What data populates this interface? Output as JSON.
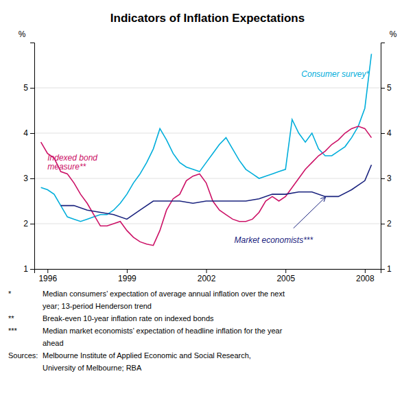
{
  "chart_data": {
    "type": "line",
    "title": "Indicators of Inflation Expectations",
    "ylabel": "%",
    "y2label": "%",
    "xlim": [
      1995.5,
      2008.6
    ],
    "xticks": [
      1996,
      1999,
      2002,
      2005,
      2008
    ],
    "ylim": [
      1,
      6
    ],
    "yticks": [
      1,
      2,
      3,
      4,
      5
    ],
    "y2lim": [
      1,
      6
    ],
    "y2ticks": [
      1,
      2,
      3,
      4,
      5
    ],
    "grid": true,
    "series": [
      {
        "name": "Consumer survey*",
        "color": "#00aedb",
        "x": [
          1995.75,
          1996.0,
          1996.25,
          1996.5,
          1996.75,
          1997.0,
          1997.25,
          1997.5,
          1997.75,
          1998.0,
          1998.25,
          1998.5,
          1998.75,
          1999.0,
          1999.25,
          1999.5,
          1999.75,
          2000.0,
          2000.25,
          2000.5,
          2000.75,
          2001.0,
          2001.25,
          2001.5,
          2001.75,
          2002.0,
          2002.25,
          2002.5,
          2002.75,
          2003.0,
          2003.25,
          2003.5,
          2003.75,
          2004.0,
          2004.25,
          2004.5,
          2004.75,
          2005.0,
          2005.25,
          2005.5,
          2005.75,
          2006.0,
          2006.25,
          2006.5,
          2006.75,
          2007.0,
          2007.25,
          2007.5,
          2007.75,
          2008.0,
          2008.25
        ],
        "values": [
          2.8,
          2.75,
          2.65,
          2.4,
          2.15,
          2.1,
          2.05,
          2.1,
          2.15,
          2.2,
          2.2,
          2.3,
          2.45,
          2.65,
          2.9,
          3.1,
          3.35,
          3.65,
          4.1,
          3.85,
          3.55,
          3.35,
          3.25,
          3.2,
          3.15,
          3.35,
          3.55,
          3.75,
          3.9,
          3.65,
          3.4,
          3.2,
          3.1,
          3.0,
          3.05,
          3.1,
          3.15,
          3.2,
          4.3,
          4.0,
          3.8,
          4.0,
          3.65,
          3.5,
          3.5,
          3.6,
          3.7,
          3.9,
          4.15,
          4.55,
          5.75
        ]
      },
      {
        "name": "Indexed bond\nmeasure**",
        "color": "#cc1166",
        "x": [
          1995.75,
          1996.0,
          1996.25,
          1996.5,
          1996.75,
          1997.0,
          1997.25,
          1997.5,
          1997.75,
          1998.0,
          1998.25,
          1998.5,
          1998.75,
          1999.0,
          1999.25,
          1999.5,
          1999.75,
          2000.0,
          2000.25,
          2000.5,
          2000.75,
          2001.0,
          2001.25,
          2001.5,
          2001.75,
          2002.0,
          2002.25,
          2002.5,
          2002.75,
          2003.0,
          2003.25,
          2003.5,
          2003.75,
          2004.0,
          2004.25,
          2004.5,
          2004.75,
          2005.0,
          2005.25,
          2005.5,
          2005.75,
          2006.0,
          2006.25,
          2006.5,
          2006.75,
          2007.0,
          2007.25,
          2007.5,
          2007.75,
          2008.0,
          2008.25
        ],
        "values": [
          3.8,
          3.55,
          3.45,
          3.15,
          3.1,
          2.9,
          2.65,
          2.45,
          2.2,
          1.95,
          1.95,
          2.0,
          2.05,
          1.85,
          1.7,
          1.6,
          1.55,
          1.52,
          1.85,
          2.3,
          2.55,
          2.65,
          2.95,
          3.05,
          3.1,
          2.9,
          2.5,
          2.3,
          2.2,
          2.1,
          2.05,
          2.05,
          2.1,
          2.25,
          2.5,
          2.6,
          2.5,
          2.6,
          2.8,
          3.0,
          3.2,
          3.35,
          3.5,
          3.6,
          3.75,
          3.85,
          4.0,
          4.1,
          4.15,
          4.1,
          3.9
        ]
      },
      {
        "name": "Market economists***",
        "color": "#1a237e",
        "x": [
          1996.5,
          1997.0,
          1997.5,
          1998.0,
          1998.5,
          1999.0,
          1999.5,
          2000.0,
          2000.5,
          2001.0,
          2001.5,
          2002.0,
          2002.5,
          2003.0,
          2003.5,
          2004.0,
          2004.5,
          2005.0,
          2005.5,
          2006.0,
          2006.5,
          2007.0,
          2007.5,
          2008.0,
          2008.25
        ],
        "values": [
          2.4,
          2.4,
          2.3,
          2.25,
          2.2,
          2.1,
          2.3,
          2.5,
          2.5,
          2.5,
          2.45,
          2.5,
          2.5,
          2.5,
          2.5,
          2.55,
          2.65,
          2.65,
          2.7,
          2.7,
          2.6,
          2.6,
          2.75,
          2.95,
          3.3
        ]
      }
    ],
    "annotations": [
      {
        "symbol": "*",
        "text": "Median consumers’ expectation of average annual inflation over the next"
      },
      {
        "text": "year; 13-period Henderson trend"
      },
      {
        "symbol": "**",
        "text": "Break-even 10-year inflation rate on indexed bonds"
      },
      {
        "symbol": "***",
        "text": "Median market economists’ expectation of headline inflation for the year"
      },
      {
        "text": "ahead"
      },
      {
        "symbol": "Sources:",
        "text": "Melbourne Institute of Applied Economic and Social Research,"
      },
      {
        "text": "University of Melbourne; RBA"
      }
    ]
  }
}
